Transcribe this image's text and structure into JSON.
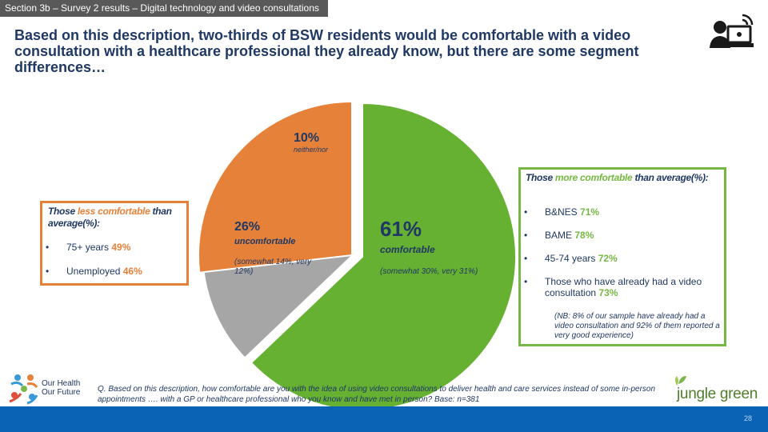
{
  "section_tag": "Section 3b – Survey 2 results – Digital technology and video consultations",
  "headline": "Based on this description, two-thirds of BSW residents would be comfortable with a video consultation with a healthcare professional they already know, but there are some segment differences…",
  "icons": {
    "top_right": "video-consultation-icon"
  },
  "chart_data": {
    "type": "pie",
    "categories": [
      "comfortable",
      "neither/nor",
      "uncomfortable"
    ],
    "values": [
      61,
      10,
      26
    ],
    "colors": [
      "#66b032",
      "#a6a6a6",
      "#e6813a"
    ],
    "slice_labels": [
      {
        "pct": "61%",
        "label": "comfortable",
        "sub": "(somewhat 30%, very 31%)"
      },
      {
        "pct": "10%",
        "label": "neither/nor",
        "sub": ""
      },
      {
        "pct": "26%",
        "label": "uncomfortable",
        "sub": "(somewhat 14%, very 12%)"
      }
    ]
  },
  "less_box": {
    "head_pre": "Those ",
    "head_hl": "less comfortable",
    "head_post": " than average(%):",
    "items": [
      {
        "dot": "•",
        "text": "75+ years ",
        "value": "49%"
      },
      {
        "dot": "•",
        "text": "Unemployed ",
        "value": "46%"
      }
    ],
    "color": "#e6813a"
  },
  "more_box": {
    "head_pre": "Those ",
    "head_hl": "more comfortable",
    "head_post": " than average(%):",
    "items": [
      {
        "dot": "•",
        "text": "B&NES ",
        "value": "71%"
      },
      {
        "dot": "•",
        "text": "BAME ",
        "value": "78%"
      },
      {
        "dot": "•",
        "text": "45-74 years ",
        "value": "72%"
      },
      {
        "dot": "•",
        "text": "Those who have already had a video consultation ",
        "value": "73%"
      }
    ],
    "note": "(NB: 8% of our sample have already had a video consultation and 92% of them reported a very good experience)",
    "color": "#76b843"
  },
  "footnote": "Q. Based on this description, how comfortable are you with the idea of using video consultations to deliver health and care services instead of some in-person appointments …. with a GP or healthcare professional who you know and have met in person? Base: n=381",
  "logos": {
    "left_line1": "Our Health",
    "left_line2": "Our Future",
    "right": "jungle green"
  },
  "page_number": "28"
}
